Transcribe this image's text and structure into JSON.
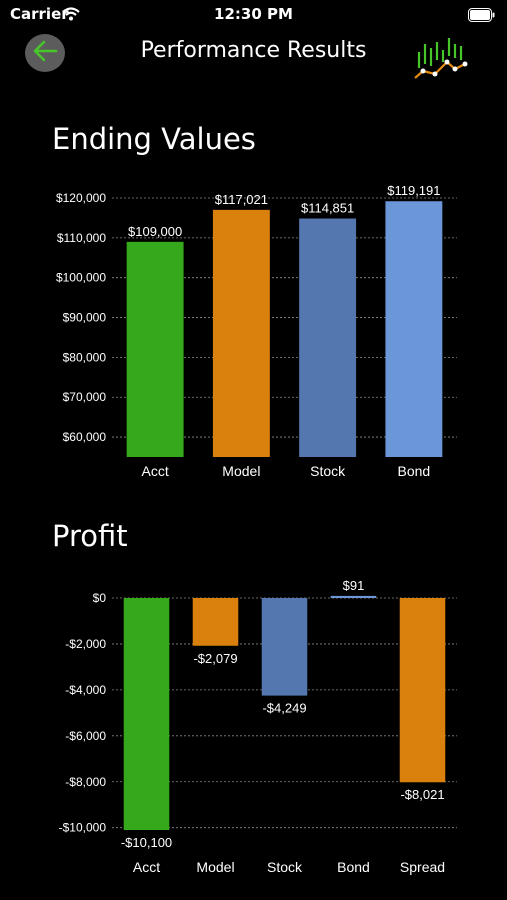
{
  "status_bar": {
    "carrier": "Carrier",
    "time": "12:30 PM"
  },
  "nav": {
    "title": "Performance Results",
    "back_icon": "arrow-left-icon",
    "logo_icon": "chart-logo-icon"
  },
  "colors": {
    "green": "#35a81c",
    "orange": "#d9810c",
    "slate": "#5577b0",
    "blue": "#6b96d7",
    "accent": "#47c62a"
  },
  "sections": {
    "ending_title": "Ending Values",
    "profit_title": "Profit"
  },
  "chart_data": [
    {
      "type": "bar",
      "title": "Ending Values",
      "categories": [
        "Acct",
        "Model",
        "Stock",
        "Bond"
      ],
      "values": [
        109000,
        117021,
        114851,
        119191
      ],
      "value_labels": [
        "$109,000",
        "$117,021",
        "$114,851",
        "$119,191"
      ],
      "colors": [
        "#35a81c",
        "#d9810c",
        "#5577b0",
        "#6b96d7"
      ],
      "yticks": [
        60000,
        70000,
        80000,
        90000,
        100000,
        110000,
        120000
      ],
      "ytick_labels": [
        "$60,000",
        "$70,000",
        "$80,000",
        "$90,000",
        "$100,000",
        "$110,000",
        "$120,000"
      ],
      "ylim": [
        55000,
        120000
      ],
      "grid": true
    },
    {
      "type": "bar",
      "title": "Profit",
      "categories": [
        "Acct",
        "Model",
        "Stock",
        "Bond",
        "Spread"
      ],
      "values": [
        -10100,
        -2079,
        -4249,
        91,
        -8021
      ],
      "value_labels": [
        "-$10,100",
        "-$2,079",
        "-$4,249",
        "$91",
        "-$8,021"
      ],
      "colors": [
        "#35a81c",
        "#d9810c",
        "#5577b0",
        "#6b96d7",
        "#d9810c"
      ],
      "yticks": [
        0,
        -2000,
        -4000,
        -6000,
        -8000,
        -10000
      ],
      "ytick_labels": [
        "$0",
        "-$2,000",
        "-$4,000",
        "-$6,000",
        "-$8,000",
        "-$10,000"
      ],
      "ylim": [
        -10100,
        0
      ],
      "grid": true
    }
  ]
}
